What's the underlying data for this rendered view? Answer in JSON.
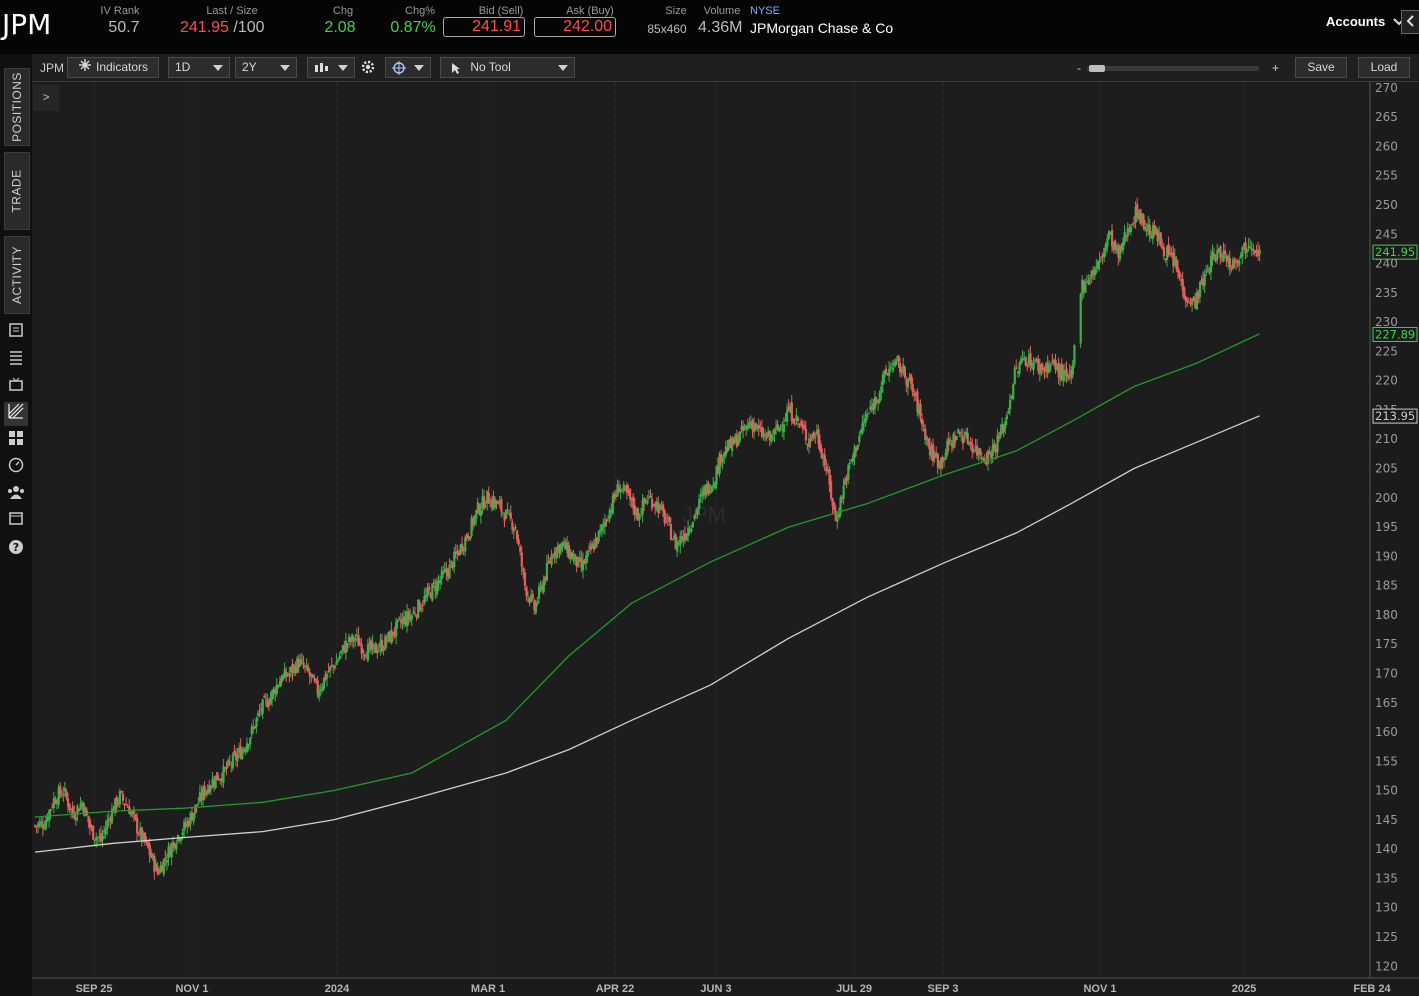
{
  "quote": {
    "symbol": "JPM",
    "iv_rank_label": "IV Rank",
    "iv_rank": "50.7",
    "last_size_label": "Last / Size",
    "last": "241.95",
    "size_suffix": "/100",
    "chg_label": "Chg",
    "chg": "2.08",
    "chg_pct_label": "Chg%",
    "chg_pct": "0.87%",
    "bid_label": "Bid (Sell)",
    "bid": "241.91",
    "ask_label": "Ask (Buy)",
    "ask": "242.00",
    "size_label": "Size",
    "size": "85x460",
    "volume_label": "Volume",
    "volume": "4.36M",
    "exchange": "NYSE",
    "company": "JPMorgan Chase & Co",
    "accounts_label": "Accounts",
    "colors": {
      "up": "#3fd34a",
      "down": "#ff4d4d"
    }
  },
  "sidebar": {
    "tabs": [
      "POSITIONS",
      "TRADE",
      "ACTIVITY"
    ],
    "icons": [
      "news-icon",
      "watchlist-icon",
      "live-tv-icon",
      "chart-icon",
      "grid-icon",
      "dashboard-icon",
      "people-icon",
      "calendar-icon",
      "help-icon"
    ]
  },
  "toolbar": {
    "symbol": "JPM",
    "indicators_label": "Indicators",
    "interval": "1D",
    "range": "2Y",
    "tool": "No Tool",
    "zoom_minus": "-",
    "zoom_plus": "+",
    "save_label": "Save",
    "load_label": "Load",
    "expander": ">"
  },
  "chart_data": {
    "type": "candlestick",
    "symbol_watermark": "JPM",
    "ylim": [
      118,
      271
    ],
    "y_ticks": [
      120,
      125,
      130,
      135,
      140,
      145,
      150,
      155,
      160,
      165,
      170,
      175,
      180,
      185,
      190,
      195,
      200,
      205,
      210,
      215,
      220,
      225,
      230,
      235,
      240,
      245,
      250,
      255,
      260,
      265,
      270
    ],
    "x_ticks": [
      "SEP 25",
      "NOV 1",
      "2024",
      "MAR 1",
      "APR 22",
      "JUN 3",
      "JUL 29",
      "SEP 3",
      "NOV 1",
      "2025",
      "FEB 24"
    ],
    "price_tags": [
      {
        "value": 241.95,
        "label": "241.95",
        "color": "#3fd34a"
      },
      {
        "value": 227.89,
        "label": "227.89",
        "color": "#3fd34a"
      },
      {
        "value": 213.95,
        "label": "213.95",
        "color": "#cccccc"
      }
    ],
    "close_path": [
      [
        0,
        144
      ],
      [
        6,
        144.5
      ],
      [
        12,
        148.5
      ],
      [
        18,
        150
      ],
      [
        24,
        146
      ],
      [
        30,
        148
      ],
      [
        36,
        143
      ],
      [
        42,
        141.5
      ],
      [
        48,
        146
      ],
      [
        54,
        149
      ],
      [
        60,
        147
      ],
      [
        66,
        143
      ],
      [
        72,
        140
      ],
      [
        78,
        136
      ],
      [
        84,
        139
      ],
      [
        90,
        142
      ],
      [
        96,
        144
      ],
      [
        102,
        147
      ],
      [
        108,
        150
      ],
      [
        114,
        152
      ],
      [
        120,
        153
      ],
      [
        126,
        155
      ],
      [
        132,
        157
      ],
      [
        138,
        160
      ],
      [
        144,
        164
      ],
      [
        150,
        166
      ],
      [
        156,
        169
      ],
      [
        162,
        170
      ],
      [
        168,
        172
      ],
      [
        174,
        170
      ],
      [
        180,
        167
      ],
      [
        186,
        170
      ],
      [
        192,
        172
      ],
      [
        198,
        175
      ],
      [
        204,
        176
      ],
      [
        210,
        174
      ],
      [
        216,
        174
      ],
      [
        222,
        175
      ],
      [
        228,
        177
      ],
      [
        234,
        179
      ],
      [
        240,
        180
      ],
      [
        246,
        182
      ],
      [
        252,
        184
      ],
      [
        258,
        186
      ],
      [
        264,
        188
      ],
      [
        270,
        191
      ],
      [
        276,
        194
      ],
      [
        282,
        198
      ],
      [
        288,
        200
      ],
      [
        294,
        199
      ],
      [
        300,
        197
      ],
      [
        306,
        195
      ],
      [
        312,
        185
      ],
      [
        318,
        181
      ],
      [
        324,
        186
      ],
      [
        330,
        191
      ],
      [
        336,
        192
      ],
      [
        342,
        190
      ],
      [
        348,
        188
      ],
      [
        354,
        191
      ],
      [
        360,
        194
      ],
      [
        366,
        198
      ],
      [
        372,
        202
      ],
      [
        378,
        200
      ],
      [
        384,
        197
      ],
      [
        390,
        200
      ],
      [
        396,
        199
      ],
      [
        402,
        196
      ],
      [
        408,
        192
      ],
      [
        414,
        194
      ],
      [
        420,
        197
      ],
      [
        426,
        201
      ],
      [
        432,
        203
      ],
      [
        438,
        208
      ],
      [
        444,
        209
      ],
      [
        450,
        211
      ],
      [
        456,
        213
      ],
      [
        462,
        211
      ],
      [
        468,
        210
      ],
      [
        474,
        212
      ],
      [
        480,
        215
      ],
      [
        486,
        213
      ],
      [
        492,
        210
      ],
      [
        498,
        211
      ],
      [
        504,
        205
      ],
      [
        510,
        196
      ],
      [
        516,
        203
      ],
      [
        522,
        208
      ],
      [
        528,
        213
      ],
      [
        534,
        216
      ],
      [
        540,
        220
      ],
      [
        546,
        223
      ],
      [
        552,
        222
      ],
      [
        558,
        219
      ],
      [
        564,
        214
      ],
      [
        570,
        208
      ],
      [
        576,
        206
      ],
      [
        582,
        209
      ],
      [
        588,
        211
      ],
      [
        594,
        210
      ],
      [
        600,
        208
      ],
      [
        606,
        207
      ],
      [
        612,
        209
      ],
      [
        618,
        213
      ],
      [
        624,
        221
      ],
      [
        630,
        224
      ],
      [
        636,
        223
      ],
      [
        642,
        222
      ],
      [
        648,
        223
      ],
      [
        654,
        221
      ],
      [
        660,
        220
      ],
      [
        666,
        236
      ],
      [
        672,
        238
      ],
      [
        678,
        240
      ],
      [
        684,
        245
      ],
      [
        690,
        241
      ],
      [
        696,
        246
      ],
      [
        702,
        249
      ],
      [
        708,
        246
      ],
      [
        714,
        245
      ],
      [
        720,
        242
      ],
      [
        726,
        240
      ],
      [
        732,
        235
      ],
      [
        738,
        233
      ],
      [
        744,
        237
      ],
      [
        750,
        241
      ],
      [
        756,
        242
      ],
      [
        762,
        240
      ],
      [
        768,
        242
      ],
      [
        774,
        244
      ],
      [
        780,
        242
      ]
    ],
    "sma_green": [
      [
        0,
        145.5
      ],
      [
        50,
        146.5
      ],
      [
        95,
        147
      ],
      [
        145,
        148
      ],
      [
        190,
        150
      ],
      [
        240,
        153
      ],
      [
        300,
        162
      ],
      [
        340,
        173
      ],
      [
        380,
        182
      ],
      [
        430,
        189
      ],
      [
        480,
        195
      ],
      [
        530,
        199
      ],
      [
        580,
        204
      ],
      [
        625,
        208
      ],
      [
        660,
        213
      ],
      [
        700,
        219
      ],
      [
        740,
        223
      ],
      [
        780,
        228
      ]
    ],
    "sma_gray": [
      [
        0,
        139.5
      ],
      [
        50,
        141
      ],
      [
        95,
        142
      ],
      [
        145,
        143
      ],
      [
        190,
        145
      ],
      [
        240,
        148.5
      ],
      [
        300,
        153
      ],
      [
        340,
        157
      ],
      [
        380,
        162
      ],
      [
        430,
        168
      ],
      [
        480,
        176
      ],
      [
        530,
        183
      ],
      [
        580,
        189
      ],
      [
        625,
        194
      ],
      [
        660,
        199
      ],
      [
        700,
        205
      ],
      [
        740,
        209.5
      ],
      [
        780,
        214
      ]
    ],
    "gap_days": [
      663,
      664,
      665
    ]
  }
}
